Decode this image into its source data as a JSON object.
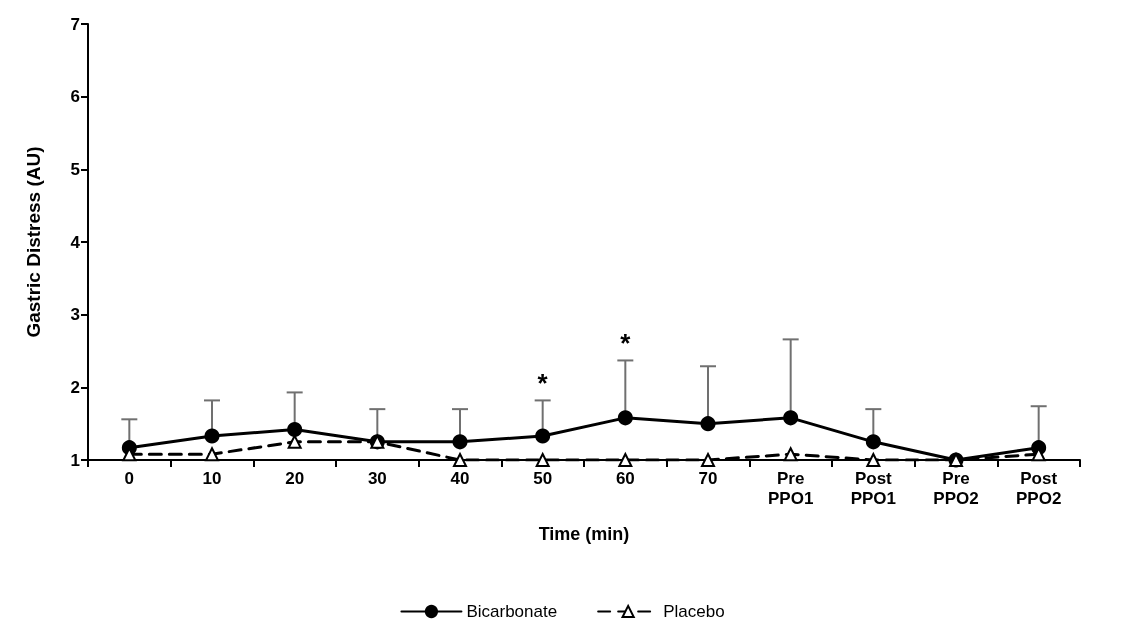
{
  "chart_data": {
    "type": "line",
    "xlabel": "Time (min)",
    "ylabel": "Gastric Distress (AU)",
    "categories": [
      "0",
      "10",
      "20",
      "30",
      "40",
      "50",
      "60",
      "70",
      "Pre PPO1",
      "Post PPO1",
      "Pre PPO2",
      "Post PPO2"
    ],
    "ylim": [
      1,
      7
    ],
    "yticks": [
      1,
      2,
      3,
      4,
      5,
      6,
      7
    ],
    "grid": false,
    "legend": "bottom",
    "series": [
      {
        "name": "Bicarbonate",
        "color": "#000000",
        "marker": "circle",
        "line_style": "solid",
        "values": [
          1.17,
          1.33,
          1.42,
          1.25,
          1.25,
          1.33,
          1.58,
          1.5,
          1.58,
          1.25,
          1.0,
          1.17
        ],
        "errors": [
          [
            1.17,
            1.56
          ],
          [
            1.33,
            1.82
          ],
          [
            1.42,
            1.93
          ],
          [
            1.25,
            1.7
          ],
          [
            1.25,
            1.7
          ],
          [
            1.33,
            1.82
          ],
          [
            1.58,
            2.37
          ],
          [
            1.5,
            2.29
          ],
          [
            1.58,
            2.66
          ],
          [
            1.25,
            1.7
          ],
          null,
          [
            1.17,
            1.74
          ]
        ]
      },
      {
        "name": "Placebo",
        "color": "#000000",
        "marker": "triangle",
        "line_style": "dashed",
        "values": [
          1.08,
          1.08,
          1.25,
          1.25,
          1.0,
          1.0,
          1.0,
          1.0,
          1.08,
          1.0,
          1.0,
          1.08
        ]
      }
    ],
    "annotations": [
      {
        "text": "*",
        "x": "50",
        "y": 1.82
      },
      {
        "text": "*",
        "x": "60",
        "y": 2.37
      }
    ]
  }
}
